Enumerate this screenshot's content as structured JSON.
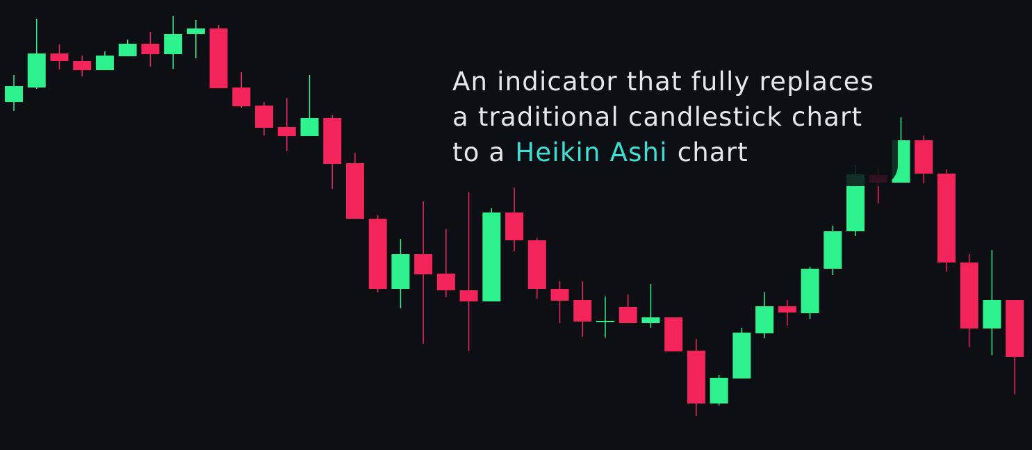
{
  "chart_data": {
    "type": "candlestick",
    "annotation": [
      "An indicator that fully replaces",
      "a traditional candlestick chart",
      "to a",
      "Heikin Ashi",
      "chart"
    ],
    "highlight_color": "#3ee0d6",
    "up_color": "#2ef28e",
    "down_color": "#f2245a",
    "ylim": [
      0,
      648
    ],
    "open": [
      501,
      522,
      571,
      560,
      547,
      567,
      585,
      570,
      599,
      607,
      522,
      496,
      465,
      452,
      478,
      413,
      333,
      232,
      282,
      254,
      230,
      214,
      342,
      302,
      232,
      216,
      184,
      206,
      183,
      191,
      143,
      67,
      103,
      168,
      207,
      197,
      261,
      315,
      396,
      385,
      446,
      398,
      270,
      175,
      216
    ],
    "high": [
      540,
      621,
      584,
      568,
      574,
      591,
      602,
      625,
      619,
      612,
      544,
      501,
      507,
      540,
      482,
      428,
      338,
      304,
      358,
      318,
      371,
      348,
      378,
      305,
      243,
      243,
      221,
      224,
      239,
      191,
      160,
      108,
      176,
      227,
      216,
      264,
      323,
      411,
      407,
      479,
      453,
      404,
      282,
      288,
      216
    ],
    "low": [
      488,
      520,
      548,
      538,
      547,
      567,
      552,
      549,
      564,
      521,
      493,
      453,
      431,
      452,
      376,
      333,
      227,
      204,
      153,
      220,
      143,
      214,
      286,
      218,
      183,
      163,
      162,
      183,
      176,
      142,
      49,
      64,
      103,
      161,
      179,
      189,
      252,
      308,
      355,
      385,
      384,
      257,
      148,
      137,
      80
    ],
    "close": [
      524,
      571,
      560,
      547,
      568,
      585,
      570,
      599,
      607,
      521,
      495,
      464,
      452,
      478,
      412,
      333,
      232,
      282,
      253,
      230,
      214,
      342,
      302,
      232,
      215,
      185,
      186,
      183,
      191,
      142,
      67,
      104,
      169,
      207,
      198,
      261,
      315,
      397,
      385,
      446,
      398,
      270,
      175,
      216,
      134
    ]
  }
}
